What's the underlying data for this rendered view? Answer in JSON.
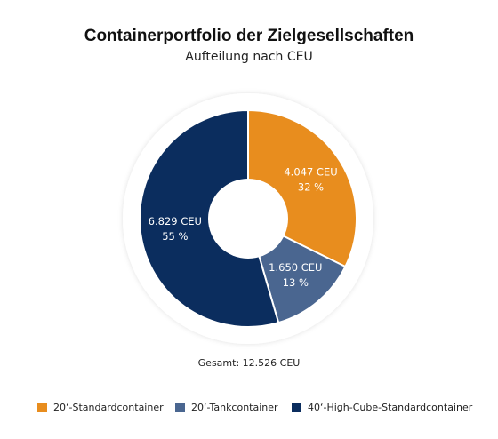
{
  "chart_data": {
    "type": "pie",
    "title": "Containerportfolio der Zielgesellschaften",
    "subtitle": "Aufteilung nach CEU",
    "unit": "CEU",
    "total_label": "Gesamt: 12.526 CEU",
    "slices": [
      {
        "name": "20‘-Standardcontainer",
        "value": 4047,
        "value_label": "4.047 CEU",
        "percent_label": "32 %",
        "color": "#E88D1E"
      },
      {
        "name": "20‘-Tankcontainer",
        "value": 1650,
        "value_label": "1.650 CEU",
        "percent_label": "13 %",
        "color": "#4A6690"
      },
      {
        "name": "40‘-High-Cube-Standardcontainer",
        "value": 6829,
        "value_label": "6.829 CEU",
        "percent_label": "55 %",
        "color": "#0B2D5E"
      }
    ],
    "legend_position": "bottom"
  }
}
